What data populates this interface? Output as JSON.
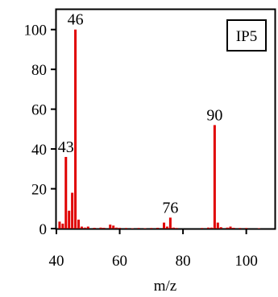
{
  "chart_data": {
    "type": "bar",
    "title": "",
    "xlabel": "m/z",
    "ylabel": "",
    "xlim": [
      40,
      109
    ],
    "ylim": [
      0,
      110
    ],
    "x_ticks": [
      40,
      60,
      80,
      100
    ],
    "y_ticks": [
      0,
      20,
      40,
      60,
      80,
      100
    ],
    "x_tick_labels": [
      "40",
      "60",
      "80",
      "100"
    ],
    "y_tick_labels": [
      "0",
      "20",
      "40",
      "60",
      "80",
      "100"
    ],
    "grid": false,
    "legend": {
      "text": "IP5",
      "placement": "top-right"
    },
    "bar_color": "#e00000",
    "series": [
      {
        "x": [
          41,
          42,
          43,
          44,
          45,
          46,
          47,
          48,
          49,
          50,
          52,
          54,
          55,
          57,
          58,
          59,
          60,
          62,
          64,
          66,
          68,
          70,
          72,
          74,
          75,
          76,
          77,
          78,
          86,
          88,
          89,
          90,
          91,
          92,
          94,
          95,
          96,
          98,
          100,
          104
        ],
        "y": [
          3.5,
          2.5,
          36,
          9,
          18,
          100,
          4.5,
          1,
          0.5,
          1,
          0.4,
          0.5,
          0.4,
          2,
          1.5,
          0.5,
          0.4,
          0.3,
          0.2,
          0.3,
          0.2,
          0.3,
          0.4,
          3,
          1,
          5.5,
          0.5,
          0.3,
          0.3,
          0.5,
          0.5,
          52,
          3,
          0.7,
          0.5,
          1,
          0.4,
          0.3,
          0.3,
          0.2
        ]
      }
    ],
    "peak_labels": [
      {
        "x": 43,
        "y": 36,
        "text": "43"
      },
      {
        "x": 46,
        "y": 100,
        "text": "46"
      },
      {
        "x": 76,
        "y": 5.5,
        "text": "76"
      },
      {
        "x": 90,
        "y": 52,
        "text": "90"
      }
    ]
  }
}
